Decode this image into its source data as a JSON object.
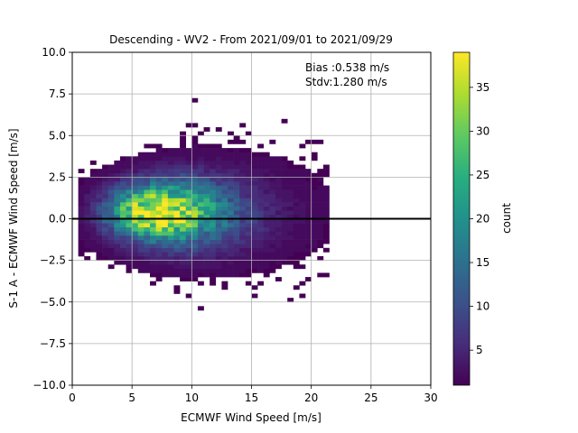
{
  "chart_data": {
    "type": "heatmap",
    "title": "Descending - WV2 - From 2021/09/01 to 2021/09/29",
    "xlabel": "ECMWF Wind Speed [m/s]",
    "ylabel": "S-1 A - ECMWF Wind Speed [m/s]",
    "xlim": [
      0,
      30
    ],
    "ylim": [
      -10,
      10
    ],
    "xticks": [
      "0",
      "5",
      "10",
      "15",
      "20",
      "25",
      "30"
    ],
    "yticks": [
      "10.0",
      "7.5",
      "5.0",
      "2.5",
      "0.0",
      "−2.5",
      "−5.0",
      "−7.5",
      "−10.0"
    ],
    "grid": true,
    "reference_line_y": 0,
    "annotation": {
      "bias": "Bias :0.538 m/s",
      "stdv": "Stdv:1.280 m/s"
    },
    "colorbar": {
      "label": "count",
      "range": [
        1,
        39
      ],
      "ticks": [
        "5",
        "10",
        "15",
        "20",
        "25",
        "30",
        "35"
      ],
      "colormap": "viridis"
    },
    "density_peak": {
      "x": 7.3,
      "y": 0.4,
      "count": 39
    }
  }
}
